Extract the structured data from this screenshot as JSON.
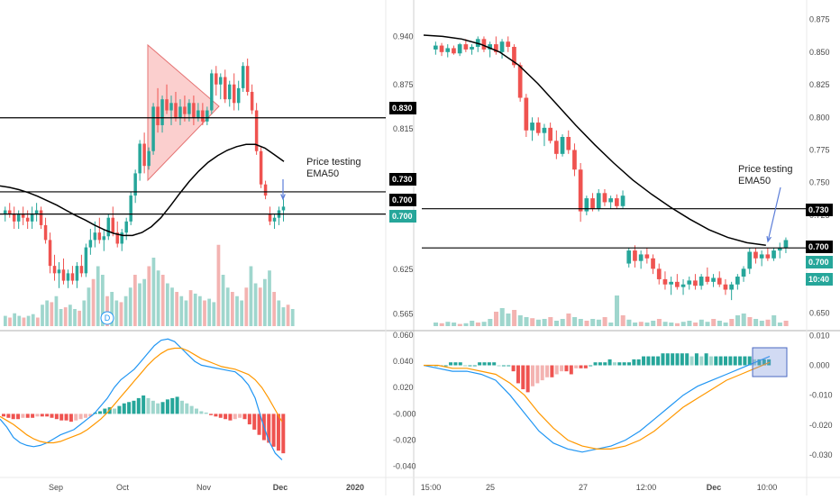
{
  "colors": {
    "up": "#26a69a",
    "down": "#ef5350",
    "up_light": "#9fd6cd",
    "down_light": "#f3b3b1",
    "ema": "#000000",
    "macd": "#2196f3",
    "signal": "#ff9800",
    "triangle_fill": "rgba(239,83,80,0.28)",
    "triangle_stroke": "#e57373",
    "axis_text": "#4a4a4a",
    "grid": "#e0e0e0",
    "badge_dark": "#000000",
    "badge_green": "#26a69a",
    "annotation_arrow": "#5b7dd8",
    "highlight_fill": "rgba(124,150,220,0.35)",
    "highlight_stroke": "#4a68c2"
  },
  "chart_data": [
    {
      "panel": "left",
      "type": "candlestick",
      "overlays": [
        "EMA50"
      ],
      "y_ticks": [
        "0.940",
        "0.875",
        "0.815",
        "0.750",
        "0.700",
        "0.625",
        "0.565"
      ],
      "x_ticks": [
        "Sep",
        "Oct",
        "Nov",
        "Dec",
        "2020"
      ],
      "horizontal_levels": [
        0.83,
        0.73,
        0.7
      ],
      "level_badges": [
        {
          "label": "0.830",
          "style": "dark"
        },
        {
          "label": "0.730",
          "style": "dark"
        },
        {
          "label": "0.700",
          "style": "dark"
        },
        {
          "label": "0.700",
          "style": "green"
        }
      ],
      "annotation": {
        "line1": "Price testing",
        "line2": "EMA50"
      },
      "marker": {
        "label": "D"
      },
      "candles": [
        [
          0.7,
          0.71,
          0.69,
          0.705
        ],
        [
          0.705,
          0.715,
          0.695,
          0.7
        ],
        [
          0.7,
          0.71,
          0.68,
          0.69
        ],
        [
          0.69,
          0.705,
          0.68,
          0.7
        ],
        [
          0.7,
          0.71,
          0.685,
          0.695
        ],
        [
          0.695,
          0.705,
          0.68,
          0.69
        ],
        [
          0.69,
          0.71,
          0.68,
          0.7
        ],
        [
          0.7,
          0.715,
          0.69,
          0.705
        ],
        [
          0.705,
          0.71,
          0.68,
          0.685
        ],
        [
          0.685,
          0.695,
          0.66,
          0.665
        ],
        [
          0.665,
          0.675,
          0.62,
          0.63
        ],
        [
          0.63,
          0.645,
          0.61,
          0.62
        ],
        [
          0.62,
          0.635,
          0.6,
          0.625
        ],
        [
          0.625,
          0.64,
          0.605,
          0.61
        ],
        [
          0.61,
          0.625,
          0.6,
          0.62
        ],
        [
          0.62,
          0.63,
          0.605,
          0.61
        ],
        [
          0.61,
          0.635,
          0.6,
          0.63
        ],
        [
          0.63,
          0.645,
          0.615,
          0.62
        ],
        [
          0.62,
          0.66,
          0.615,
          0.655
        ],
        [
          0.655,
          0.68,
          0.645,
          0.665
        ],
        [
          0.665,
          0.69,
          0.655,
          0.675
        ],
        [
          0.675,
          0.695,
          0.66,
          0.665
        ],
        [
          0.665,
          0.68,
          0.65,
          0.67
        ],
        [
          0.67,
          0.7,
          0.665,
          0.695
        ],
        [
          0.695,
          0.71,
          0.67,
          0.675
        ],
        [
          0.675,
          0.69,
          0.655,
          0.66
        ],
        [
          0.66,
          0.68,
          0.65,
          0.675
        ],
        [
          0.675,
          0.695,
          0.665,
          0.69
        ],
        [
          0.69,
          0.73,
          0.685,
          0.725
        ],
        [
          0.725,
          0.76,
          0.715,
          0.755
        ],
        [
          0.755,
          0.8,
          0.745,
          0.795
        ],
        [
          0.795,
          0.81,
          0.755,
          0.765
        ],
        [
          0.765,
          0.79,
          0.76,
          0.785
        ],
        [
          0.785,
          0.85,
          0.78,
          0.845
        ],
        [
          0.845,
          0.87,
          0.81,
          0.82
        ],
        [
          0.82,
          0.86,
          0.81,
          0.855
        ],
        [
          0.855,
          0.875,
          0.835,
          0.84
        ],
        [
          0.84,
          0.86,
          0.82,
          0.85
        ],
        [
          0.85,
          0.865,
          0.825,
          0.83
        ],
        [
          0.83,
          0.855,
          0.82,
          0.845
        ],
        [
          0.845,
          0.86,
          0.825,
          0.835
        ],
        [
          0.835,
          0.855,
          0.825,
          0.85
        ],
        [
          0.85,
          0.86,
          0.82,
          0.83
        ],
        [
          0.83,
          0.85,
          0.825,
          0.84
        ],
        [
          0.84,
          0.85,
          0.82,
          0.825
        ],
        [
          0.825,
          0.845,
          0.82,
          0.84
        ],
        [
          0.84,
          0.895,
          0.835,
          0.89
        ],
        [
          0.89,
          0.9,
          0.86,
          0.875
        ],
        [
          0.875,
          0.89,
          0.855,
          0.885
        ],
        [
          0.885,
          0.895,
          0.85,
          0.855
        ],
        [
          0.855,
          0.88,
          0.845,
          0.875
        ],
        [
          0.875,
          0.89,
          0.84,
          0.85
        ],
        [
          0.85,
          0.88,
          0.84,
          0.87
        ],
        [
          0.87,
          0.905,
          0.865,
          0.9
        ],
        [
          0.9,
          0.91,
          0.86,
          0.865
        ],
        [
          0.865,
          0.875,
          0.835,
          0.84
        ],
        [
          0.84,
          0.85,
          0.78,
          0.785
        ],
        [
          0.785,
          0.79,
          0.735,
          0.74
        ],
        [
          0.74,
          0.745,
          0.72,
          0.725
        ],
        [
          0.7,
          0.71,
          0.685,
          0.69
        ],
        [
          0.69,
          0.7,
          0.68,
          0.695
        ],
        [
          0.695,
          0.71,
          0.685,
          0.705
        ],
        [
          0.705,
          0.72,
          0.69,
          0.71
        ]
      ],
      "ema50": [
        0.738,
        0.736,
        0.733,
        0.729,
        0.724,
        0.718,
        0.712,
        0.705,
        0.698,
        0.692,
        0.685,
        0.679,
        0.674,
        0.671,
        0.671,
        0.675,
        0.683,
        0.695,
        0.711,
        0.728,
        0.744,
        0.758,
        0.77,
        0.779,
        0.786,
        0.791,
        0.794,
        0.794,
        0.789,
        0.78,
        0.771
      ],
      "volume": [
        0.12,
        0.1,
        0.15,
        0.12,
        0.1,
        0.12,
        0.14,
        0.1,
        0.25,
        0.3,
        0.28,
        0.35,
        0.2,
        0.22,
        0.25,
        0.2,
        0.18,
        0.3,
        0.45,
        0.55,
        0.7,
        0.6,
        0.35,
        0.4,
        0.3,
        0.28,
        0.35,
        0.45,
        0.6,
        0.5,
        0.55,
        0.7,
        0.8,
        0.65,
        0.6,
        0.5,
        0.45,
        0.4,
        0.35,
        0.3,
        0.42,
        0.38,
        0.35,
        0.3,
        0.32,
        0.28,
        0.95,
        0.6,
        0.45,
        0.4,
        0.35,
        0.3,
        0.45,
        0.7,
        0.5,
        0.45,
        0.55,
        0.65,
        0.4,
        0.3,
        0.22,
        0.25,
        0.2
      ],
      "macd_y_ticks": [
        "0.060",
        "0.040",
        "0.020",
        "-0.000",
        "-0.020",
        "-0.040"
      ],
      "macd": [
        -0.004,
        -0.01,
        -0.018,
        -0.022,
        -0.024,
        -0.025,
        -0.024,
        -0.022,
        -0.019,
        -0.016,
        -0.014,
        -0.012,
        -0.008,
        -0.004,
        0.0,
        0.006,
        0.012,
        0.02,
        0.026,
        0.03,
        0.034,
        0.04,
        0.046,
        0.052,
        0.056,
        0.057,
        0.055,
        0.05,
        0.045,
        0.04,
        0.037,
        0.036,
        0.035,
        0.034,
        0.033,
        0.032,
        0.028,
        0.022,
        0.012,
        -0.005,
        -0.02,
        -0.03,
        -0.035
      ],
      "signal": [
        -0.002,
        -0.005,
        -0.008,
        -0.012,
        -0.016,
        -0.019,
        -0.021,
        -0.022,
        -0.022,
        -0.021,
        -0.019,
        -0.017,
        -0.015,
        -0.012,
        -0.008,
        -0.004,
        0.001,
        0.007,
        0.013,
        0.019,
        0.025,
        0.031,
        0.037,
        0.042,
        0.046,
        0.049,
        0.05,
        0.05,
        0.048,
        0.045,
        0.042,
        0.04,
        0.038,
        0.036,
        0.035,
        0.034,
        0.032,
        0.03,
        0.026,
        0.02,
        0.012,
        0.003,
        -0.006
      ],
      "histogram": [
        -0.002,
        -0.003,
        -0.004,
        -0.004,
        -0.003,
        -0.003,
        -0.003,
        -0.002,
        -0.002,
        -0.002,
        -0.003,
        -0.004,
        -0.005,
        -0.005,
        -0.006,
        -0.005,
        -0.004,
        -0.003,
        -0.002,
        0.001,
        0.002,
        0.004,
        0.005,
        0.004,
        0.006,
        0.008,
        0.009,
        0.01,
        0.012,
        0.014,
        0.012,
        0.01,
        0.008,
        0.009,
        0.011,
        0.012,
        0.013,
        0.01,
        0.008,
        0.006,
        0.004,
        0.002,
        0.001,
        -0.001,
        -0.002,
        -0.003,
        -0.004,
        -0.005,
        -0.004,
        -0.003,
        -0.004,
        -0.008,
        -0.012,
        -0.016,
        -0.02,
        -0.022,
        -0.025,
        -0.028,
        -0.03
      ]
    },
    {
      "panel": "right",
      "type": "candlestick",
      "overlays": [
        "EMA50"
      ],
      "y_ticks": [
        "0.875",
        "0.850",
        "0.825",
        "0.800",
        "0.775",
        "0.750",
        "0.725",
        "0.700",
        "0.675",
        "0.650"
      ],
      "x_ticks": [
        "15:00",
        "25",
        "27",
        "12:00",
        "Dec",
        "10:00"
      ],
      "horizontal_levels": [
        0.73,
        0.7
      ],
      "level_badges": [
        {
          "label": "0.730",
          "style": "dark"
        },
        {
          "label": "0.700",
          "style": "dark"
        },
        {
          "label": "0.700",
          "style": "green"
        },
        {
          "label": "10:40",
          "style": "green"
        }
      ],
      "annotation": {
        "line1": "Price testing",
        "line2": "EMA50"
      },
      "candles": [
        [
          0.852,
          0.858,
          0.848,
          0.855
        ],
        [
          0.855,
          0.857,
          0.847,
          0.85
        ],
        [
          0.85,
          0.856,
          0.846,
          0.853
        ],
        [
          0.853,
          0.855,
          0.848,
          0.849
        ],
        [
          0.849,
          0.857,
          0.847,
          0.856
        ],
        [
          0.856,
          0.86,
          0.85,
          0.852
        ],
        [
          0.852,
          0.856,
          0.848,
          0.854
        ],
        [
          0.854,
          0.862,
          0.85,
          0.86
        ],
        [
          0.86,
          0.862,
          0.85,
          0.852
        ],
        [
          0.852,
          0.858,
          0.846,
          0.856
        ],
        [
          0.856,
          0.862,
          0.848,
          0.85
        ],
        [
          0.85,
          0.86,
          0.845,
          0.858
        ],
        [
          0.858,
          0.862,
          0.85,
          0.854
        ],
        [
          0.854,
          0.856,
          0.838,
          0.84
        ],
        [
          0.84,
          0.842,
          0.812,
          0.815
        ],
        [
          0.815,
          0.818,
          0.785,
          0.79
        ],
        [
          0.79,
          0.8,
          0.782,
          0.796
        ],
        [
          0.796,
          0.8,
          0.786,
          0.788
        ],
        [
          0.788,
          0.795,
          0.778,
          0.792
        ],
        [
          0.792,
          0.796,
          0.78,
          0.782
        ],
        [
          0.782,
          0.79,
          0.768,
          0.772
        ],
        [
          0.772,
          0.787,
          0.77,
          0.785
        ],
        [
          0.785,
          0.79,
          0.772,
          0.775
        ],
        [
          0.775,
          0.78,
          0.755,
          0.76
        ],
        [
          0.76,
          0.765,
          0.72,
          0.728
        ],
        [
          0.728,
          0.74,
          0.725,
          0.738
        ],
        [
          0.738,
          0.742,
          0.728,
          0.73
        ],
        [
          0.73,
          0.745,
          0.728,
          0.742
        ],
        [
          0.742,
          0.745,
          0.732,
          0.735
        ],
        [
          0.735,
          0.74,
          0.73,
          0.738
        ],
        [
          0.738,
          0.741,
          0.73,
          0.732
        ],
        [
          0.732,
          0.744,
          0.73,
          0.74
        ],
        [
          0.688,
          0.7,
          0.685,
          0.698
        ],
        [
          0.698,
          0.702,
          0.685,
          0.69
        ],
        [
          0.69,
          0.698,
          0.684,
          0.695
        ],
        [
          0.695,
          0.7,
          0.688,
          0.692
        ],
        [
          0.692,
          0.695,
          0.68,
          0.684
        ],
        [
          0.684,
          0.688,
          0.672,
          0.676
        ],
        [
          0.676,
          0.682,
          0.668,
          0.672
        ],
        [
          0.672,
          0.678,
          0.664,
          0.674
        ],
        [
          0.674,
          0.68,
          0.668,
          0.67
        ],
        [
          0.67,
          0.676,
          0.664,
          0.672
        ],
        [
          0.672,
          0.678,
          0.668,
          0.675
        ],
        [
          0.675,
          0.68,
          0.668,
          0.671
        ],
        [
          0.671,
          0.68,
          0.668,
          0.678
        ],
        [
          0.678,
          0.685,
          0.672,
          0.674
        ],
        [
          0.674,
          0.68,
          0.67,
          0.677
        ],
        [
          0.677,
          0.682,
          0.67,
          0.672
        ],
        [
          0.672,
          0.676,
          0.664,
          0.668
        ],
        [
          0.668,
          0.674,
          0.66,
          0.672
        ],
        [
          0.672,
          0.68,
          0.668,
          0.678
        ],
        [
          0.678,
          0.686,
          0.674,
          0.684
        ],
        [
          0.684,
          0.7,
          0.68,
          0.697
        ],
        [
          0.697,
          0.7,
          0.688,
          0.692
        ],
        [
          0.692,
          0.698,
          0.686,
          0.695
        ],
        [
          0.695,
          0.7,
          0.69,
          0.692
        ],
        [
          0.692,
          0.7,
          0.69,
          0.698
        ],
        [
          0.698,
          0.704,
          0.692,
          0.7
        ],
        [
          0.7,
          0.708,
          0.696,
          0.706
        ]
      ],
      "ema50": [
        0.863,
        0.862,
        0.86,
        0.856,
        0.85,
        0.84,
        0.826,
        0.81,
        0.794,
        0.779,
        0.765,
        0.752,
        0.741,
        0.731,
        0.722,
        0.714,
        0.708,
        0.704,
        0.702
      ],
      "volume": [
        0.1,
        0.08,
        0.12,
        0.1,
        0.06,
        0.08,
        0.15,
        0.1,
        0.12,
        0.2,
        0.4,
        0.5,
        0.35,
        0.45,
        0.3,
        0.25,
        0.22,
        0.18,
        0.2,
        0.25,
        0.15,
        0.2,
        0.35,
        0.25,
        0.2,
        0.15,
        0.2,
        0.18,
        0.25,
        0.1,
        0.85,
        0.3,
        0.18,
        0.1,
        0.12,
        0.1,
        0.15,
        0.2,
        0.12,
        0.1,
        0.08,
        0.12,
        0.15,
        0.1,
        0.18,
        0.12,
        0.2,
        0.15,
        0.1,
        0.2,
        0.3,
        0.35,
        0.25,
        0.2,
        0.15,
        0.18,
        0.3,
        0.1,
        0.15
      ],
      "macd_y_ticks": [
        "0.010",
        "0.000",
        "-0.010",
        "-0.020",
        "-0.030"
      ],
      "macd": [
        0.0,
        -0.001,
        -0.002,
        -0.002,
        -0.003,
        -0.005,
        -0.01,
        -0.016,
        -0.022,
        -0.026,
        -0.028,
        -0.029,
        -0.028,
        -0.027,
        -0.025,
        -0.022,
        -0.018,
        -0.014,
        -0.01,
        -0.007,
        -0.005,
        -0.003,
        -0.001,
        0.001,
        0.003
      ],
      "signal": [
        0.0,
        0.0,
        -0.001,
        -0.001,
        -0.002,
        -0.003,
        -0.006,
        -0.01,
        -0.016,
        -0.021,
        -0.025,
        -0.027,
        -0.028,
        -0.028,
        -0.027,
        -0.025,
        -0.022,
        -0.018,
        -0.014,
        -0.011,
        -0.008,
        -0.005,
        -0.003,
        -0.001,
        0.001
      ],
      "histogram": [
        0.0,
        0.0,
        0.0,
        0.001,
        0.001,
        0.001,
        0.0,
        0.0,
        0.0,
        0.001,
        0.001,
        0.001,
        0.001,
        0.0,
        0.0,
        0.0,
        -0.002,
        -0.006,
        -0.008,
        -0.009,
        -0.007,
        -0.006,
        -0.005,
        -0.004,
        -0.004,
        -0.003,
        -0.002,
        -0.002,
        -0.003,
        -0.001,
        -0.001,
        -0.001,
        0.0,
        0.001,
        0.001,
        0.001,
        0.002,
        0.001,
        0.001,
        0.001,
        0.001,
        0.002,
        0.002,
        0.003,
        0.003,
        0.003,
        0.003,
        0.004,
        0.004,
        0.004,
        0.004,
        0.004,
        0.004,
        0.003,
        0.004,
        0.003,
        0.004,
        0.003,
        0.003,
        0.003,
        0.003,
        0.003,
        0.003,
        0.003,
        0.003,
        0.003,
        0.002,
        0.002,
        0.002,
        0.002
      ]
    }
  ]
}
